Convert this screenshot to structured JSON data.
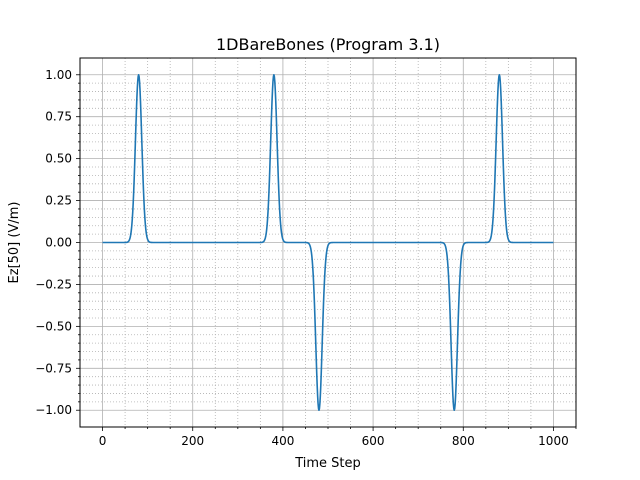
{
  "chart_data": {
    "type": "line",
    "title": "1DBareBones (Program 3.1)",
    "xlabel": "Time Step",
    "ylabel": "Ez[50] (V/m)",
    "xlim": [
      -50,
      1050
    ],
    "ylim": [
      -1.1,
      1.1
    ],
    "x_ticks": [
      0,
      200,
      400,
      600,
      800,
      1000
    ],
    "y_ticks": [
      -1.0,
      -0.75,
      -0.5,
      -0.25,
      0.0,
      0.25,
      0.5,
      0.75,
      1.0
    ],
    "x_tick_labels": [
      "0",
      "200",
      "400",
      "600",
      "800",
      "1000"
    ],
    "y_tick_labels": [
      "−1.00",
      "−0.75",
      "−0.50",
      "−0.25",
      "0.00",
      "0.25",
      "0.50",
      "0.75",
      "1.00"
    ],
    "grid": true,
    "minor_grid": true,
    "line_color": "#1f77b4",
    "series": [
      {
        "pulses": [
          {
            "center": 80,
            "amplitude": 1.0,
            "width": 10
          },
          {
            "center": 380,
            "amplitude": 1.0,
            "width": 10
          },
          {
            "center": 480,
            "amplitude": -1.0,
            "width": 10
          },
          {
            "center": 780,
            "amplitude": -1.0,
            "width": 10
          },
          {
            "center": 880,
            "amplitude": 1.0,
            "width": 10
          }
        ],
        "x_range": [
          0,
          1000
        ]
      }
    ]
  }
}
